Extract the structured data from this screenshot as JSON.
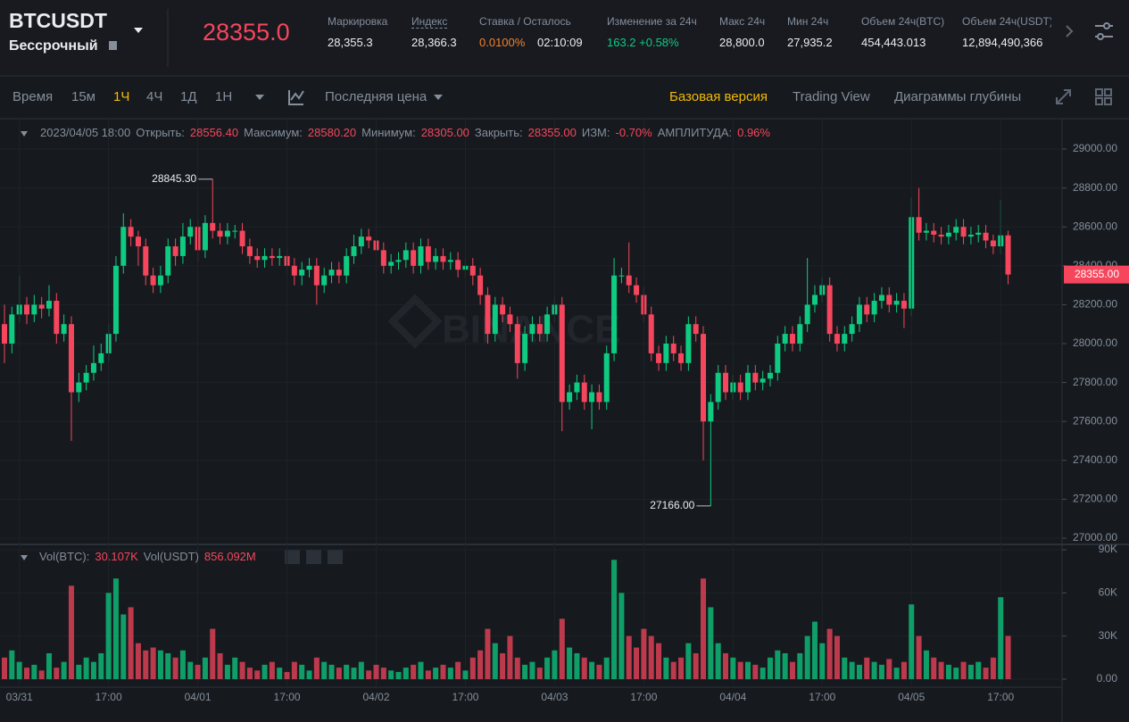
{
  "header": {
    "symbol": "BTCUSDT",
    "contract": "Бессрочный",
    "last_price": "28355.0",
    "stats": [
      {
        "label": "Маркировка",
        "value": "28,355.3"
      },
      {
        "label": "Индекс",
        "value": "28,366.3"
      },
      {
        "label": "Ставка / Осталось",
        "value": "0.0100%",
        "value2": "02:10:09"
      },
      {
        "label": "Изменение за 24ч",
        "value": "163.2 +0.58%"
      },
      {
        "label": "Макс 24ч",
        "value": "28,800.0"
      },
      {
        "label": "Мин 24ч",
        "value": "27,935.2"
      },
      {
        "label": "Объем 24ч(BTC)",
        "value": "454,443.013"
      },
      {
        "label": "Объем 24ч(USDT)",
        "value": "12,894,490,366"
      }
    ]
  },
  "toolbar": {
    "intervals": [
      "Время",
      "15м",
      "1Ч",
      "4Ч",
      "1Д",
      "1Н"
    ],
    "price_type": "Последняя цена",
    "views": [
      "Базовая версия",
      "Trading View",
      "Диаграммы глубины"
    ]
  },
  "watermark": "BINANCE",
  "chart_data": [
    {
      "type": "candlestick",
      "up_color": "#0ecb81",
      "down_color": "#f6465d",
      "legend": {
        "time": "2023/04/05 18:00",
        "items": [
          {
            "label": "Открыть:",
            "value": "28556.40"
          },
          {
            "label": "Максимум:",
            "value": "28580.20"
          },
          {
            "label": "Минимум:",
            "value": "28305.00"
          },
          {
            "label": "Закрыть:",
            "value": "28355.00"
          },
          {
            "label": "ИЗМ:",
            "value": "-0.70%"
          },
          {
            "label": "АМПЛИТУДА:",
            "value": "0.96%"
          }
        ]
      },
      "high_label": "28845.30",
      "low_label": "27166.00",
      "last_price_label": "28355.00",
      "categories": [
        null,
        null,
        "03/31",
        null,
        null,
        null,
        null,
        null,
        null,
        null,
        null,
        null,
        null,
        null,
        "17:00",
        null,
        null,
        null,
        null,
        null,
        null,
        null,
        null,
        null,
        null,
        null,
        "04/01",
        null,
        null,
        null,
        null,
        null,
        null,
        null,
        null,
        null,
        null,
        null,
        "17:00",
        null,
        null,
        null,
        null,
        null,
        null,
        null,
        null,
        null,
        null,
        null,
        "04/02",
        null,
        null,
        null,
        null,
        null,
        null,
        null,
        null,
        null,
        null,
        null,
        "17:00",
        null,
        null,
        null,
        null,
        null,
        null,
        null,
        null,
        null,
        null,
        null,
        "04/03",
        null,
        null,
        null,
        null,
        null,
        null,
        null,
        null,
        null,
        null,
        null,
        "17:00",
        null,
        null,
        null,
        null,
        null,
        null,
        null,
        null,
        null,
        null,
        null,
        "04/04",
        null,
        null,
        null,
        null,
        null,
        null,
        null,
        null,
        null,
        null,
        null,
        "17:00",
        null,
        null,
        null,
        null,
        null,
        null,
        null,
        null,
        null,
        null,
        null,
        "04/05",
        null,
        null,
        null,
        null,
        null,
        null,
        null,
        null,
        null,
        null,
        null,
        "17:00",
        null
      ],
      "open": [
        28100,
        28000,
        28150,
        28200,
        28150,
        28200,
        28180,
        28220,
        28050,
        28100,
        27750,
        27800,
        27850,
        27900,
        27950,
        28050,
        28400,
        28600,
        28550,
        28500,
        28350,
        28300,
        28350,
        28500,
        28450,
        28550,
        28600,
        28480,
        28620,
        28580,
        28550,
        28580,
        28580,
        28500,
        28450,
        28430,
        28450,
        28440,
        28450,
        28400,
        28350,
        28380,
        28400,
        28300,
        28350,
        28380,
        28350,
        28450,
        28500,
        28550,
        28530,
        28480,
        28400,
        28420,
        28430,
        28480,
        28400,
        28500,
        28420,
        28450,
        28420,
        28430,
        28380,
        28400,
        28350,
        28250,
        28050,
        28200,
        28150,
        28100,
        27900,
        28050,
        28100,
        28050,
        28150,
        28200,
        27700,
        27750,
        27800,
        27700,
        27750,
        27700,
        27950,
        28350,
        28350,
        28300,
        28250,
        28150,
        27950,
        27900,
        28000,
        27950,
        27900,
        28100,
        28050,
        27600,
        27700,
        27850,
        27750,
        27800,
        27750,
        27850,
        27800,
        27820,
        27850,
        28000,
        28050,
        28000,
        28100,
        28200,
        28250,
        28300,
        28050,
        28000,
        28050,
        28100,
        28200,
        28150,
        28220,
        28250,
        28200,
        28220,
        28180,
        28650,
        28570,
        28580,
        28560,
        28550,
        28570,
        28600,
        28550,
        28560,
        28570,
        28530,
        28500,
        28556.4
      ],
      "high": [
        28200,
        28190,
        28350,
        28240,
        28250,
        28240,
        28300,
        28260,
        28150,
        28140,
        27850,
        27890,
        27990,
        28000,
        28100,
        28450,
        28670,
        28640,
        28580,
        28540,
        28390,
        28400,
        28540,
        28540,
        28620,
        28640,
        28640,
        28660,
        28845.3,
        28620,
        28620,
        28610,
        28620,
        28540,
        28490,
        28490,
        28490,
        28490,
        28490,
        28440,
        28420,
        28440,
        28440,
        28390,
        28420,
        28420,
        28490,
        28560,
        28590,
        28590,
        28570,
        28520,
        28460,
        28470,
        28520,
        28520,
        28540,
        28540,
        28490,
        28490,
        28470,
        28470,
        28440,
        28440,
        28390,
        28290,
        28240,
        28240,
        28190,
        28140,
        28090,
        28140,
        28140,
        28190,
        28240,
        28240,
        27790,
        27840,
        27840,
        27790,
        27790,
        27990,
        28440,
        28390,
        28520,
        28340,
        28290,
        28190,
        27990,
        28040,
        28040,
        27990,
        28140,
        28140,
        28090,
        27740,
        27890,
        27890,
        27840,
        27840,
        27890,
        27890,
        27860,
        27890,
        28040,
        28090,
        28090,
        28140,
        28440,
        28300,
        28340,
        28340,
        28090,
        28090,
        28140,
        28240,
        28240,
        28260,
        28290,
        28290,
        28260,
        28260,
        28750,
        28800,
        28620,
        28620,
        28600,
        28610,
        28640,
        28640,
        28600,
        28610,
        28610,
        28560,
        28740,
        28580.2
      ],
      "low": [
        27900,
        27950,
        28110,
        28100,
        28110,
        28130,
        28140,
        28000,
        28010,
        27500,
        27700,
        27760,
        27810,
        27860,
        27910,
        28010,
        28360,
        28500,
        28400,
        28300,
        28260,
        28260,
        28310,
        28400,
        28410,
        28510,
        28420,
        28440,
        28540,
        28510,
        28510,
        28540,
        28460,
        28410,
        28390,
        28390,
        28400,
        28400,
        28360,
        28300,
        28300,
        28340,
        28200,
        28260,
        28310,
        28310,
        28310,
        28410,
        28460,
        28490,
        28440,
        28360,
        28360,
        28380,
        28390,
        28360,
        28360,
        28380,
        28380,
        28380,
        28380,
        28340,
        28340,
        28300,
        28200,
        28000,
        28010,
        28110,
        28060,
        27820,
        27860,
        28010,
        28010,
        28010,
        28110,
        27550,
        27660,
        27710,
        27660,
        27560,
        27660,
        27660,
        27910,
        28310,
        28260,
        28210,
        28110,
        27910,
        27860,
        27860,
        27910,
        27860,
        27860,
        28010,
        27400,
        27166,
        27660,
        27710,
        27710,
        27710,
        27710,
        27760,
        27760,
        27780,
        27810,
        27960,
        27960,
        27960,
        28060,
        28160,
        28210,
        28010,
        27960,
        27960,
        28010,
        28060,
        28110,
        28110,
        28180,
        28160,
        28160,
        28080,
        28140,
        28530,
        28530,
        28520,
        28510,
        28510,
        28530,
        28510,
        28510,
        28520,
        28490,
        28460,
        28460,
        28305
      ],
      "close": [
        28000,
        28150,
        28200,
        28150,
        28200,
        28180,
        28220,
        28050,
        28100,
        27750,
        27800,
        27850,
        27900,
        27950,
        28050,
        28400,
        28600,
        28550,
        28500,
        28350,
        28300,
        28350,
        28500,
        28450,
        28550,
        28600,
        28480,
        28620,
        28580,
        28550,
        28580,
        28580,
        28500,
        28450,
        28430,
        28450,
        28440,
        28450,
        28400,
        28350,
        28380,
        28400,
        28300,
        28350,
        28380,
        28350,
        28450,
        28500,
        28550,
        28530,
        28480,
        28400,
        28420,
        28430,
        28480,
        28400,
        28500,
        28420,
        28450,
        28420,
        28430,
        28380,
        28400,
        28350,
        28250,
        28050,
        28200,
        28150,
        28100,
        27900,
        28050,
        28100,
        28050,
        28150,
        28200,
        27700,
        27750,
        27800,
        27700,
        27750,
        27700,
        27950,
        28350,
        28350,
        28300,
        28250,
        28150,
        27950,
        27900,
        28000,
        27950,
        27900,
        28100,
        28050,
        27600,
        27700,
        27850,
        27750,
        27800,
        27750,
        27850,
        27800,
        27820,
        27850,
        28000,
        28050,
        28000,
        28100,
        28200,
        28250,
        28300,
        28050,
        28000,
        28050,
        28100,
        28200,
        28150,
        28220,
        28250,
        28200,
        28220,
        28180,
        28650,
        28570,
        28580,
        28560,
        28550,
        28570,
        28600,
        28550,
        28560,
        28570,
        28530,
        28500,
        28556.4,
        28355
      ],
      "ylim": [
        26968,
        29156
      ],
      "yticks": [
        {
          "value": 27000,
          "label": "27000.00"
        },
        {
          "value": 27200,
          "label": "27200.00"
        },
        {
          "value": 27400,
          "label": "27400.00"
        },
        {
          "value": 27600,
          "label": "27600.00"
        },
        {
          "value": 27800,
          "label": "27800.00"
        },
        {
          "value": 28000,
          "label": "28000.00"
        },
        {
          "value": 28200,
          "label": "28200.00"
        },
        {
          "value": 28400,
          "label": "28400.00"
        },
        {
          "value": 28600,
          "label": "28600.00"
        },
        {
          "value": 28800,
          "label": "28800.00"
        },
        {
          "value": 29000,
          "label": "29000.00"
        }
      ]
    },
    {
      "type": "bar",
      "legend": {
        "items": [
          {
            "label": "Vol(BTC):",
            "value": "30.107K"
          },
          {
            "label": "Vol(USDT)",
            "value": "856.092M"
          }
        ]
      },
      "values": [
        15,
        20,
        12,
        8,
        10,
        6,
        18,
        8,
        12,
        65,
        10,
        15,
        12,
        18,
        60,
        70,
        45,
        50,
        25,
        20,
        22,
        20,
        18,
        15,
        20,
        12,
        10,
        15,
        35,
        18,
        10,
        15,
        12,
        8,
        6,
        10,
        12,
        8,
        5,
        12,
        10,
        6,
        15,
        12,
        10,
        8,
        10,
        8,
        12,
        6,
        10,
        8,
        6,
        5,
        8,
        10,
        12,
        6,
        8,
        10,
        8,
        12,
        6,
        15,
        20,
        35,
        25,
        18,
        30,
        15,
        10,
        12,
        8,
        15,
        20,
        42,
        22,
        18,
        15,
        12,
        10,
        15,
        83,
        60,
        30,
        22,
        35,
        30,
        25,
        15,
        12,
        15,
        25,
        18,
        70,
        50,
        25,
        18,
        15,
        12,
        12,
        10,
        8,
        15,
        20,
        18,
        12,
        18,
        30,
        40,
        25,
        35,
        30,
        15,
        12,
        10,
        15,
        12,
        10,
        14,
        8,
        12,
        52,
        30,
        20,
        15,
        12,
        10,
        8,
        12,
        10,
        12,
        8,
        15,
        57,
        30.107
      ],
      "ylim": [
        -5.6,
        92.5
      ],
      "yticks": [
        {
          "value": 0,
          "label": "0.00"
        },
        {
          "value": 30,
          "label": "30K"
        },
        {
          "value": 60,
          "label": "60K"
        },
        {
          "value": 90,
          "label": "90K"
        }
      ]
    }
  ]
}
